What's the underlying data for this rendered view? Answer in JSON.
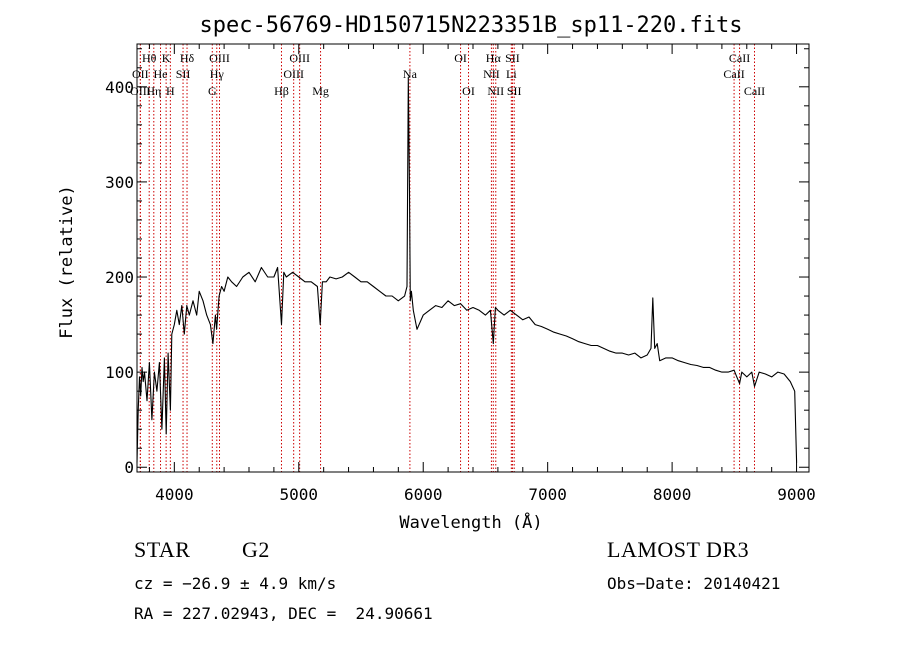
{
  "chart_data": {
    "type": "line",
    "title": "spec-56769-HD150715N223351B_sp11-220.fits",
    "xlabel": "Wavelength (Å)",
    "ylabel": "Flux (relative)",
    "xlim": [
      3700,
      9100
    ],
    "ylim": [
      -5,
      445
    ],
    "x_ticks": [
      4000,
      5000,
      6000,
      7000,
      8000,
      9000
    ],
    "y_ticks": [
      0,
      100,
      200,
      300,
      400
    ],
    "series": [
      {
        "name": "flux",
        "x": [
          3700,
          3710,
          3720,
          3730,
          3740,
          3750,
          3760,
          3780,
          3800,
          3820,
          3840,
          3860,
          3880,
          3900,
          3920,
          3935,
          3950,
          3968,
          3980,
          4000,
          4020,
          4040,
          4060,
          4080,
          4100,
          4120,
          4150,
          4180,
          4200,
          4230,
          4260,
          4290,
          4310,
          4330,
          4340,
          4360,
          4380,
          4400,
          4430,
          4460,
          4500,
          4550,
          4600,
          4650,
          4700,
          4750,
          4800,
          4830,
          4861,
          4880,
          4900,
          4950,
          5000,
          5050,
          5100,
          5150,
          5172,
          5190,
          5220,
          5250,
          5300,
          5350,
          5400,
          5450,
          5500,
          5550,
          5600,
          5650,
          5700,
          5750,
          5800,
          5850,
          5870,
          5880,
          5890,
          5896,
          5905,
          5920,
          5950,
          6000,
          6050,
          6100,
          6150,
          6200,
          6250,
          6300,
          6350,
          6400,
          6450,
          6500,
          6540,
          6563,
          6580,
          6600,
          6650,
          6700,
          6750,
          6800,
          6850,
          6900,
          6950,
          7000,
          7050,
          7100,
          7150,
          7200,
          7250,
          7300,
          7350,
          7400,
          7450,
          7500,
          7550,
          7600,
          7650,
          7700,
          7750,
          7800,
          7830,
          7845,
          7860,
          7880,
          7900,
          7950,
          8000,
          8050,
          8100,
          8150,
          8200,
          8250,
          8300,
          8350,
          8400,
          8450,
          8498,
          8520,
          8542,
          8560,
          8600,
          8640,
          8662,
          8700,
          8750,
          8800,
          8850,
          8900,
          8950,
          8985,
          9000
        ],
        "values": [
          5,
          60,
          95,
          75,
          105,
          90,
          100,
          70,
          110,
          50,
          100,
          80,
          110,
          40,
          115,
          35,
          120,
          60,
          140,
          150,
          165,
          150,
          170,
          140,
          170,
          160,
          175,
          160,
          185,
          175,
          160,
          150,
          130,
          160,
          145,
          180,
          190,
          185,
          200,
          195,
          190,
          200,
          205,
          195,
          210,
          200,
          200,
          210,
          150,
          205,
          200,
          205,
          200,
          195,
          195,
          190,
          150,
          195,
          195,
          200,
          198,
          200,
          205,
          200,
          195,
          195,
          190,
          185,
          180,
          180,
          175,
          180,
          190,
          410,
          290,
          175,
          185,
          165,
          145,
          160,
          165,
          170,
          168,
          175,
          170,
          172,
          165,
          168,
          165,
          160,
          165,
          130,
          168,
          165,
          160,
          165,
          160,
          155,
          158,
          150,
          148,
          145,
          142,
          140,
          138,
          135,
          132,
          130,
          128,
          128,
          125,
          122,
          120,
          120,
          118,
          120,
          115,
          118,
          125,
          178,
          125,
          130,
          112,
          115,
          115,
          112,
          110,
          108,
          107,
          105,
          105,
          102,
          100,
          100,
          102,
          95,
          88,
          100,
          95,
          100,
          85,
          100,
          98,
          95,
          100,
          98,
          90,
          80,
          5
        ]
      }
    ],
    "line_markers": [
      {
        "label": "Hθ",
        "wl": 3798,
        "row": 1
      },
      {
        "label": "OII",
        "wl": 3727,
        "row": 2
      },
      {
        "label": "OIII",
        "wl": 3727,
        "row": 3
      },
      {
        "label": "K",
        "wl": 3934,
        "row": 1
      },
      {
        "label": "He",
        "wl": 3889,
        "row": 2
      },
      {
        "label": "Hη",
        "wl": 3835,
        "row": 3
      },
      {
        "label": "SII",
        "wl": 4070,
        "row": 2
      },
      {
        "label": "H",
        "wl": 3968,
        "row": 3
      },
      {
        "label": "Hδ",
        "wl": 4102,
        "row": 1
      },
      {
        "label": "OIII",
        "wl": 4363,
        "row": 1
      },
      {
        "label": "Hγ",
        "wl": 4341,
        "row": 2
      },
      {
        "label": "G",
        "wl": 4305,
        "row": 3
      },
      {
        "label": "Hβ",
        "wl": 4861,
        "row": 3
      },
      {
        "label": "OIII",
        "wl": 5007,
        "row": 1
      },
      {
        "label": "OIII",
        "wl": 4959,
        "row": 2
      },
      {
        "label": "Mg",
        "wl": 5175,
        "row": 3
      },
      {
        "label": "Na",
        "wl": 5893,
        "row": 2
      },
      {
        "label": "OI",
        "wl": 6300,
        "row": 1
      },
      {
        "label": "OI",
        "wl": 6364,
        "row": 3
      },
      {
        "label": "Hα",
        "wl": 6563,
        "row": 1
      },
      {
        "label": "NII",
        "wl": 6548,
        "row": 2
      },
      {
        "label": "NII",
        "wl": 6583,
        "row": 3
      },
      {
        "label": "SII",
        "wl": 6717,
        "row": 1
      },
      {
        "label": "Li",
        "wl": 6708,
        "row": 2
      },
      {
        "label": "SII",
        "wl": 6731,
        "row": 3
      },
      {
        "label": "CaII",
        "wl": 8542,
        "row": 1
      },
      {
        "label": "CaII",
        "wl": 8498,
        "row": 2
      },
      {
        "label": "CaII",
        "wl": 8662,
        "row": 3
      }
    ],
    "colors": {
      "marker": "#cc0000",
      "trace": "#000000",
      "axes": "#000000"
    }
  },
  "info": {
    "class_label": "STAR",
    "subclass": "G2",
    "survey": "LAMOST DR3",
    "cz": "cz = −26.9 ± 4.9 km/s",
    "obs_date": "Obs−Date: 20140421",
    "radec": "RA = 227.02943, DEC =  24.90661"
  }
}
